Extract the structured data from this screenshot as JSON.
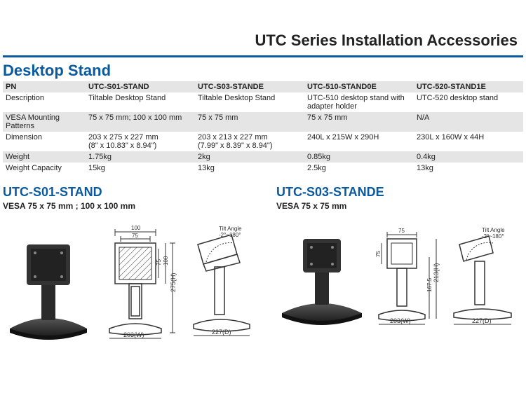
{
  "page_title": "UTC Series Installation Accessories",
  "section_title": "Desktop Stand",
  "colors": {
    "accent": "#0a5aa0",
    "text": "#222222",
    "row_alt": "#e5e5e5",
    "row_plain": "#ffffff",
    "stand_fill": "#3c3c3c",
    "line": "#333333",
    "background": "#ffffff"
  },
  "table": {
    "header": [
      "PN",
      "UTC-S01-STAND",
      "UTC-S03-STANDE",
      "UTC-510-STAND0E",
      "UTC-520-STAND1E"
    ],
    "rows": [
      {
        "h": "Description",
        "c": [
          "Tiltable Desktop Stand",
          "Tiltable Desktop Stand",
          "UTC-510 desktop stand with adapter holder",
          "UTC-520 desktop stand"
        ]
      },
      {
        "h": "VESA Mounting Patterns",
        "c": [
          "75 x 75 mm; 100 x 100 mm",
          "75 x 75 mm",
          "75 x 75 mm",
          "N/A"
        ]
      },
      {
        "h": "Dimension",
        "c": [
          "203 x 275 x 227 mm\n(8\" x 10.83\" x 8.94\")",
          "203 x 213 x 227 mm\n(7.99\" x 8.39\" x 8.94\")",
          "240L x 215W x 290H",
          "230L x 160W x 44H"
        ]
      },
      {
        "h": "Weight",
        "c": [
          "1.75kg",
          "2kg",
          "0.85kg",
          "0.4kg"
        ]
      },
      {
        "h": "Weight Capacity",
        "c": [
          "15kg",
          "13kg",
          "2.5kg",
          "13kg"
        ]
      }
    ]
  },
  "products": [
    {
      "title": "UTC-S01-STAND",
      "subtitle": "VESA 75 x 75 mm ; 100 x 100 mm",
      "front_width_label": "203(W)",
      "front_height_label": "275(H)",
      "front_top_100": "100",
      "front_top_75": "75",
      "front_side_100": "100",
      "front_side_75": "75",
      "side_depth_label": "227(D)",
      "tilt_label": "Tilt Angle",
      "tilt_range": "-2°~180°"
    },
    {
      "title": "UTC-S03-STANDE",
      "subtitle": "VESA 75 x 75 mm",
      "front_width_label": "203(W)",
      "front_height_213": "213(H)",
      "front_height_167": "167.5",
      "front_top_75": "75",
      "front_side_75": "75",
      "side_depth_label": "227(D)",
      "tilt_label": "Tilt Angle",
      "tilt_range": "-2°~180°"
    }
  ]
}
